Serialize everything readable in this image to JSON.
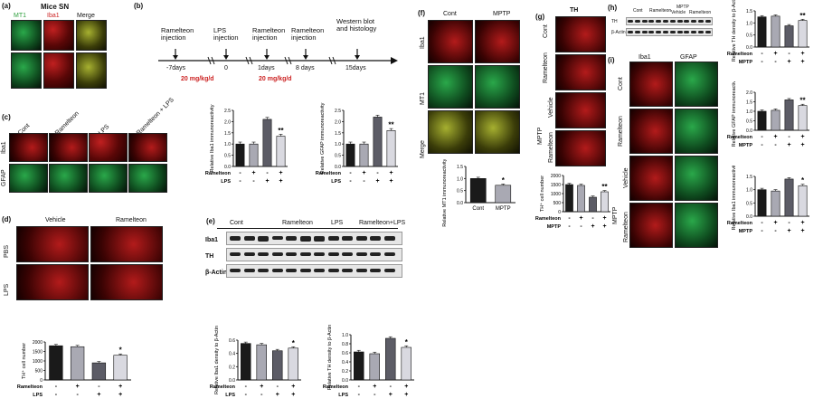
{
  "panels": {
    "a": {
      "label": "(a)",
      "title": "Mice SN",
      "channels": [
        "MT1",
        "Iba1",
        "Merge"
      ]
    },
    "b": {
      "label": "(b)",
      "events": [
        "Ramelteon injection",
        "LPS injection",
        "Ramelteon injection",
        "Ramelteon injection",
        "Western blot and histology"
      ],
      "days": [
        "-7days",
        "0",
        "1days",
        "8 days",
        "15days"
      ],
      "doses": [
        "20 mg/kg/d",
        "20 mg/kg/d"
      ]
    },
    "c": {
      "label": "(c)",
      "cols": [
        "Cont",
        "Ramelteon",
        "LPS",
        "Ramelteon + LPS"
      ],
      "rows": [
        "Iba1",
        "GFAP"
      ]
    },
    "d": {
      "label": "(d)",
      "cols": [
        "Vehicle",
        "Ramelteon"
      ],
      "rows": [
        "PBS",
        "LPS"
      ]
    },
    "e": {
      "label": "(e)",
      "groups": [
        "Cont",
        "Ramelteon",
        "LPS",
        "Ramelteon+LPS"
      ],
      "rows": [
        "Iba1",
        "TH",
        "β-Actin"
      ]
    },
    "f": {
      "label": "(f)",
      "cols": [
        "Cont",
        "MPTP"
      ],
      "rows": [
        "Iba1",
        "MT1",
        "Merge"
      ]
    },
    "g": {
      "label": "(g)",
      "title": "TH",
      "rows": [
        "Cont",
        "Ramelteon",
        "Vehicle",
        "Ramelteon"
      ],
      "group": "MPTP"
    },
    "h": {
      "label": "(h)",
      "groups": [
        "Cont",
        "Ramelteon",
        "Vehicle",
        "Ramelteon"
      ],
      "group": "MPTP",
      "rows": [
        "TH",
        "β-Actin"
      ]
    },
    "i": {
      "label": "(i)",
      "cols": [
        "Iba1",
        "GFAP"
      ],
      "rows": [
        "Cont",
        "Ramelteon",
        "Vehicle",
        "Ramelteon"
      ],
      "group": "MPTP"
    }
  },
  "chart_data": [
    {
      "id": "c1",
      "type": "bar",
      "ylabel": "Relative Iba1 immunoreactivity",
      "ylim": [
        0,
        2.5
      ],
      "yticks": [
        "0.0",
        "0.5",
        "1.0",
        "1.5",
        "2.0",
        "2.5"
      ],
      "values": [
        1.0,
        1.0,
        2.1,
        1.35
      ],
      "sig": [
        "",
        "",
        "",
        "**"
      ],
      "ram": [
        "-",
        "+",
        "-",
        "+"
      ],
      "lps": [
        "-",
        "-",
        "+",
        "+"
      ]
    },
    {
      "id": "c2",
      "type": "bar",
      "ylabel": "Relative GFAP immunoreactivity",
      "ylim": [
        0,
        2.5
      ],
      "yticks": [
        "0.0",
        "0.5",
        "1.0",
        "1.5",
        "2.0",
        "2.5"
      ],
      "values": [
        1.0,
        1.0,
        2.2,
        1.6
      ],
      "sig": [
        "",
        "",
        "",
        "**"
      ],
      "ram": [
        "-",
        "+",
        "-",
        "+"
      ],
      "lps": [
        "-",
        "-",
        "+",
        "+"
      ]
    },
    {
      "id": "d1",
      "type": "bar",
      "ylabel": "TH⁺ cell number",
      "ylim": [
        0,
        2000
      ],
      "yticks": [
        "0",
        "500",
        "1000",
        "1500",
        "2000"
      ],
      "values": [
        1800,
        1750,
        900,
        1300
      ],
      "sig": [
        "",
        "",
        "",
        "*"
      ],
      "ram": [
        "-",
        "+",
        "-",
        "+"
      ],
      "lps": [
        "-",
        "-",
        "+",
        "+"
      ]
    },
    {
      "id": "e1",
      "type": "bar",
      "ylabel": "Relative Iba1 density to β-Actin",
      "ylim": [
        0,
        0.6
      ],
      "yticks": [
        "0.0",
        "0.2",
        "0.4",
        "0.6"
      ],
      "values": [
        0.55,
        0.53,
        0.44,
        0.48
      ],
      "sig": [
        "",
        "",
        "",
        "*"
      ],
      "ram": [
        "-",
        "+",
        "-",
        "+"
      ],
      "lps": [
        "-",
        "-",
        "+",
        "+"
      ]
    },
    {
      "id": "e2",
      "type": "bar",
      "ylabel": "Relative TH density to β-Actin",
      "ylim": [
        0,
        1.0
      ],
      "yticks": [
        "0.0",
        "0.2",
        "0.4",
        "0.6",
        "0.8",
        "1.0"
      ],
      "values": [
        0.62,
        0.58,
        0.92,
        0.72
      ],
      "sig": [
        "",
        "",
        "",
        "*"
      ],
      "ram": [
        "-",
        "+",
        "-",
        "+"
      ],
      "lps": [
        "-",
        "-",
        "+",
        "+"
      ]
    },
    {
      "id": "f1",
      "type": "bar",
      "ylabel": "Relative MT1 immunoreactivity to Iba1",
      "ylim": [
        0,
        1.5
      ],
      "yticks": [
        "0.0",
        "0.5",
        "1.0",
        "1.5"
      ],
      "categories": [
        "Cont",
        "MPTP"
      ],
      "values": [
        1.0,
        0.72
      ],
      "sig": [
        "",
        "*"
      ]
    },
    {
      "id": "g1",
      "type": "bar",
      "ylabel": "TH⁺ cell number",
      "ylim": [
        0,
        2000
      ],
      "yticks": [
        "0",
        "500",
        "1000",
        "1500",
        "2000"
      ],
      "values": [
        1500,
        1450,
        800,
        1100
      ],
      "sig": [
        "",
        "",
        "",
        "**"
      ],
      "ram": [
        "-",
        "+",
        "-",
        "+"
      ],
      "lps": [
        "-",
        "-",
        "+",
        "+"
      ],
      "row2label": "MPTP"
    },
    {
      "id": "h1",
      "type": "bar",
      "ylabel": "Relative TH density to β-Actin",
      "ylim": [
        0,
        1.5
      ],
      "yticks": [
        "0.0",
        "0.5",
        "1.0",
        "1.5"
      ],
      "values": [
        1.25,
        1.28,
        0.88,
        1.1
      ],
      "sig": [
        "",
        "",
        "",
        "**"
      ],
      "ram": [
        "-",
        "+",
        "-",
        "+"
      ],
      "lps": [
        "-",
        "-",
        "+",
        "+"
      ],
      "row2label": "MPTP"
    },
    {
      "id": "i1",
      "type": "bar",
      "ylabel": "Relative GFAP immunoreactivity",
      "ylim": [
        0,
        2.0
      ],
      "yticks": [
        "0.0",
        "0.5",
        "1.0",
        "1.5",
        "2.0"
      ],
      "values": [
        1.0,
        1.05,
        1.6,
        1.3
      ],
      "sig": [
        "",
        "",
        "",
        "**"
      ],
      "ram": [
        "-",
        "+",
        "-",
        "+"
      ],
      "lps": [
        "-",
        "-",
        "+",
        "+"
      ],
      "row2label": "MPTP"
    },
    {
      "id": "i2",
      "type": "bar",
      "ylabel": "Relative Iba1 immunoreactivity",
      "ylim": [
        0,
        1.5
      ],
      "yticks": [
        "0.0",
        "0.5",
        "1.0",
        "1.5"
      ],
      "values": [
        1.0,
        0.95,
        1.4,
        1.15
      ],
      "sig": [
        "",
        "",
        "",
        "*"
      ],
      "ram": [
        "-",
        "+",
        "-",
        "+"
      ],
      "lps": [
        "-",
        "-",
        "+",
        "+"
      ],
      "row2label": "MPTP"
    }
  ],
  "labels": {
    "ramelteon": "Ramelteon",
    "lps": "LPS"
  },
  "colors": {
    "black": "#1a1a1a",
    "grey": "#a9a9b3",
    "darkgrey": "#5c5c66",
    "light": "#d9d9e0"
  }
}
